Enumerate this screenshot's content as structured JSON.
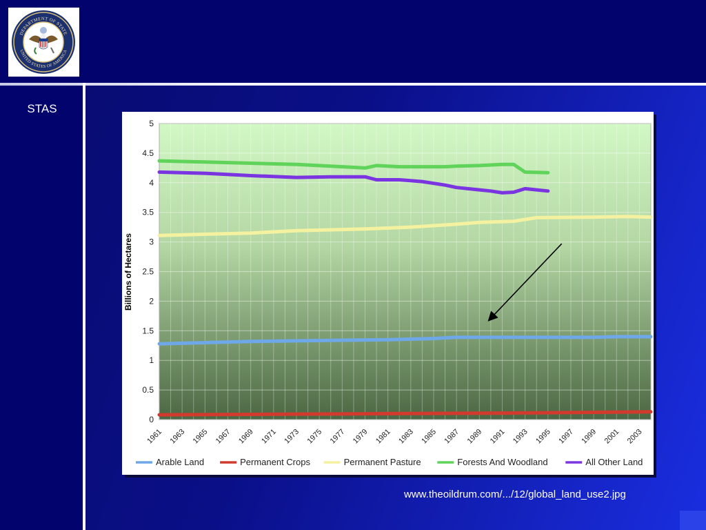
{
  "slide": {
    "nav_label": "STAS",
    "source": "www.theoildrum.com/.../12/global_land_use2.jpg",
    "colors": {
      "background": "#0a0f88",
      "header": "#03036e",
      "rule": "#ffffff"
    }
  },
  "seal": {
    "icon": "department-of-state-seal-icon",
    "top_text": "DEPARTMENT OF STATE",
    "bottom_text": "UNITED STATES OF AMERICA"
  },
  "chart_data": {
    "type": "line",
    "title": "",
    "xlabel": "",
    "ylabel": "Billions of Hectares",
    "ylim": [
      0,
      5
    ],
    "xlim": [
      1961,
      2004
    ],
    "yticks": [
      "0",
      "0.5",
      "1",
      "1.5",
      "2",
      "2.5",
      "3",
      "3.5",
      "4",
      "4.5",
      "5"
    ],
    "xticks": [
      "1961",
      "1963",
      "1965",
      "1967",
      "1969",
      "1971",
      "1973",
      "1975",
      "1977",
      "1979",
      "1981",
      "1983",
      "1985",
      "1987",
      "1989",
      "1991",
      "1993",
      "1995",
      "1997",
      "1999",
      "2001",
      "2003"
    ],
    "grid": true,
    "legend_position": "bottom",
    "series": [
      {
        "name": "Arable Land",
        "color": "#6fa8e8",
        "x": [
          1961,
          1965,
          1969,
          1973,
          1977,
          1981,
          1985,
          1987,
          1991,
          1995,
          1999,
          2001,
          2004
        ],
        "y": [
          1.28,
          1.3,
          1.32,
          1.33,
          1.34,
          1.35,
          1.37,
          1.39,
          1.39,
          1.39,
          1.39,
          1.4,
          1.4
        ]
      },
      {
        "name": "Permanent Crops",
        "color": "#d23a2e",
        "x": [
          1961,
          1971,
          1981,
          1991,
          2004
        ],
        "y": [
          0.08,
          0.09,
          0.1,
          0.11,
          0.13
        ]
      },
      {
        "name": "Permanent Pasture",
        "color": "#f4f1a0",
        "x": [
          1961,
          1965,
          1969,
          1973,
          1977,
          1979,
          1983,
          1987,
          1989,
          1992,
          1994,
          1999,
          2002,
          2004
        ],
        "y": [
          3.11,
          3.13,
          3.15,
          3.19,
          3.21,
          3.22,
          3.25,
          3.3,
          3.33,
          3.35,
          3.41,
          3.42,
          3.43,
          3.42
        ]
      },
      {
        "name": "Forests And Woodland",
        "color": "#5fd35a",
        "x": [
          1961,
          1965,
          1969,
          1973,
          1977,
          1979,
          1980,
          1982,
          1984,
          1986,
          1987,
          1989,
          1991,
          1992,
          1993,
          1995
        ],
        "y": [
          4.37,
          4.35,
          4.33,
          4.31,
          4.27,
          4.25,
          4.29,
          4.27,
          4.27,
          4.27,
          4.28,
          4.29,
          4.31,
          4.31,
          4.18,
          4.17
        ]
      },
      {
        "name": "All Other Land",
        "color": "#7a35e0",
        "x": [
          1961,
          1965,
          1969,
          1973,
          1976,
          1979,
          1980,
          1982,
          1984,
          1986,
          1987,
          1989,
          1990,
          1991,
          1992,
          1993,
          1995
        ],
        "y": [
          4.18,
          4.16,
          4.12,
          4.09,
          4.1,
          4.1,
          4.05,
          4.05,
          4.02,
          3.96,
          3.92,
          3.88,
          3.86,
          3.83,
          3.84,
          3.9,
          3.86
        ]
      }
    ],
    "annotations": [
      {
        "type": "arrow",
        "from": [
          1996.2,
          2.97
        ],
        "to": [
          1989.8,
          1.67
        ]
      }
    ]
  }
}
